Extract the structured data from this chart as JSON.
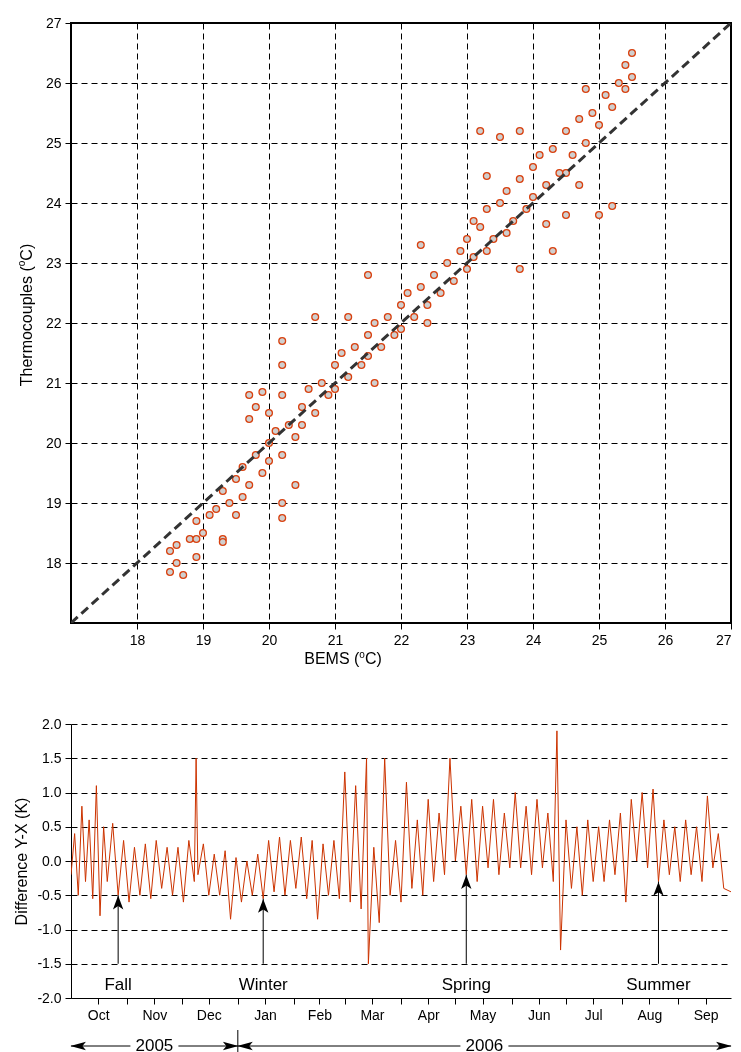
{
  "chart_data": [
    {
      "type": "scatter",
      "xlabel": "BEMS ($^{o}$C)",
      "ylabel": "Thermocouples ($^{o}$C)",
      "xlim": [
        17,
        27
      ],
      "ylim": [
        17,
        27
      ],
      "xticks": [
        18,
        19,
        20,
        21,
        22,
        23,
        24,
        25,
        26,
        27
      ],
      "yticks": [
        18,
        19,
        20,
        21,
        22,
        23,
        24,
        25,
        26,
        27
      ],
      "grid": true,
      "series": [
        {
          "type": "scatter",
          "color": "#d9410f",
          "marker": "circle",
          "x": [
            18.5,
            18.5,
            18.6,
            18.7,
            18.6,
            18.8,
            18.9,
            18.9,
            19.0,
            19.1,
            19.2,
            19.3,
            19.3,
            19.4,
            19.5,
            19.6,
            19.6,
            19.7,
            19.8,
            19.9,
            20.0,
            20.0,
            20.1,
            20.2,
            20.2,
            20.2,
            20.2,
            20.2,
            20.2,
            19.7,
            19.8,
            19.9,
            20.0,
            19.7,
            20.3,
            20.4,
            20.5,
            20.5,
            20.6,
            20.7,
            20.8,
            20.9,
            21.0,
            21.0,
            21.1,
            21.2,
            21.3,
            21.4,
            21.5,
            21.5,
            21.6,
            21.7,
            21.8,
            21.9,
            22.0,
            22.0,
            22.1,
            22.2,
            22.3,
            22.4,
            22.5,
            22.6,
            22.7,
            22.8,
            22.9,
            23.0,
            23.0,
            23.1,
            23.2,
            23.3,
            23.3,
            23.4,
            23.5,
            23.6,
            23.6,
            23.7,
            23.8,
            23.9,
            24.0,
            24.0,
            24.1,
            24.2,
            24.3,
            24.4,
            24.5,
            24.6,
            24.7,
            24.8,
            24.9,
            25.0,
            25.1,
            25.2,
            25.3,
            25.4,
            25.5,
            25.5,
            25.4,
            24.8,
            23.2,
            23.5,
            23.8,
            22.3,
            21.5,
            21.2,
            20.7,
            22.4,
            24.5,
            25.0,
            25.2,
            24.3,
            23.8,
            24.2,
            24.7,
            24.5,
            21.6,
            20.4,
            19.5,
            18.9,
            19.3,
            23.3,
            23.1
          ],
          "values": [
            17.85,
            18.2,
            18.0,
            17.8,
            18.3,
            18.4,
            18.1,
            18.7,
            18.5,
            18.8,
            18.9,
            18.4,
            19.2,
            19.0,
            19.4,
            19.1,
            19.6,
            19.3,
            19.8,
            19.5,
            20.0,
            19.7,
            20.2,
            19.8,
            18.75,
            19.0,
            21.7,
            21.3,
            20.8,
            20.8,
            20.6,
            20.85,
            20.5,
            20.4,
            20.3,
            20.1,
            20.6,
            20.3,
            20.9,
            20.5,
            21.0,
            20.8,
            21.3,
            20.9,
            21.5,
            21.1,
            21.6,
            21.3,
            21.8,
            21.45,
            22.0,
            21.6,
            22.1,
            21.8,
            22.3,
            21.9,
            22.5,
            22.1,
            22.6,
            22.3,
            22.8,
            22.5,
            23.0,
            22.7,
            23.2,
            22.9,
            23.4,
            23.1,
            23.6,
            23.2,
            23.9,
            23.4,
            24.0,
            23.5,
            24.2,
            23.7,
            24.4,
            23.9,
            24.6,
            24.1,
            24.8,
            24.3,
            24.9,
            24.5,
            25.2,
            24.8,
            25.4,
            25.0,
            25.5,
            25.3,
            25.8,
            25.6,
            26.0,
            25.9,
            26.5,
            26.1,
            26.3,
            25.9,
            25.2,
            25.1,
            25.2,
            23.3,
            22.8,
            22.1,
            22.1,
            22.0,
            23.8,
            23.8,
            23.95,
            23.2,
            22.9,
            23.65,
            24.3,
            24.5,
            21.0,
            19.3,
            18.8,
            18.4,
            18.35,
            24.45,
            23.7
          ]
        },
        {
          "type": "line",
          "color": "#333333",
          "line_style": "dashed",
          "marker": "none",
          "x": [
            17,
            27
          ],
          "values": [
            17,
            27
          ]
        }
      ]
    },
    {
      "type": "line",
      "ylabel": "Difference Y-X (K)",
      "xlim": [
        "2005-10-01",
        "2006-09-30"
      ],
      "xticks": [
        {
          "value": "2005-10-16",
          "label": "Oct"
        },
        {
          "value": "2005-11-01",
          "label": null
        },
        {
          "value": "2005-11-16",
          "label": "Nov"
        },
        {
          "value": "2005-12-01",
          "label": null
        },
        {
          "value": "2005-12-16",
          "label": "Dec"
        },
        {
          "value": "2006-01-01",
          "label": null
        },
        {
          "value": "2006-01-16",
          "label": "Jan"
        },
        {
          "value": "2006-02-01",
          "label": null
        },
        {
          "value": "2006-02-15",
          "label": "Feb"
        },
        {
          "value": "2006-03-01",
          "label": null
        },
        {
          "value": "2006-03-16",
          "label": "Mar"
        },
        {
          "value": "2006-04-01",
          "label": null
        },
        {
          "value": "2006-04-16",
          "label": "Apr"
        },
        {
          "value": "2006-05-01",
          "label": null
        },
        {
          "value": "2006-05-16",
          "label": "May"
        },
        {
          "value": "2006-06-01",
          "label": null
        },
        {
          "value": "2006-06-16",
          "label": "Jun"
        },
        {
          "value": "2006-07-01",
          "label": null
        },
        {
          "value": "2006-07-16",
          "label": "Jul"
        },
        {
          "value": "2006-08-01",
          "label": null
        },
        {
          "value": "2006-08-16",
          "label": "Aug"
        },
        {
          "value": "2006-09-01",
          "label": null
        },
        {
          "value": "2006-09-16",
          "label": "Sep"
        }
      ],
      "ylim": [
        -2,
        2
      ],
      "yticks": [
        {
          "value": -2,
          "label": "-2.0"
        },
        {
          "value": -1.5,
          "label": "-1.5"
        },
        {
          "value": -1,
          "label": "-1.0"
        },
        {
          "value": -0.5,
          "label": "-0.5"
        },
        {
          "value": 0,
          "label": "0.0"
        },
        {
          "value": 0.5,
          "label": "0.5"
        },
        {
          "value": 1,
          "label": "1.0"
        },
        {
          "value": 1.5,
          "label": "1.5"
        },
        {
          "value": 2,
          "label": "2.0"
        }
      ],
      "grid": "y",
      "x": [
        "2005-10-01",
        "2005-10-03",
        "2005-10-05",
        "2005-10-07",
        "2005-10-09",
        "2005-10-11",
        "2005-10-13",
        "2005-10-15",
        "2005-10-17",
        "2005-10-19",
        "2005-10-21",
        "2005-10-24",
        "2005-10-27",
        "2005-10-30",
        "2005-11-02",
        "2005-11-05",
        "2005-11-08",
        "2005-11-11",
        "2005-11-14",
        "2005-11-17",
        "2005-11-20",
        "2005-11-23",
        "2005-11-26",
        "2005-11-29",
        "2005-12-02",
        "2005-12-05",
        "2005-12-08",
        "2005-12-09",
        "2005-12-10",
        "2005-12-13",
        "2005-12-16",
        "2005-12-19",
        "2005-12-22",
        "2005-12-25",
        "2005-12-28",
        "2005-12-31",
        "2006-01-03",
        "2006-01-06",
        "2006-01-09",
        "2006-01-12",
        "2006-01-15",
        "2006-01-18",
        "2006-01-21",
        "2006-01-24",
        "2006-01-27",
        "2006-01-30",
        "2006-02-02",
        "2006-02-05",
        "2006-02-08",
        "2006-02-11",
        "2006-02-14",
        "2006-02-17",
        "2006-02-20",
        "2006-02-23",
        "2006-02-26",
        "2006-03-01",
        "2006-03-04",
        "2006-03-07",
        "2006-03-10",
        "2006-03-13",
        "2006-03-14",
        "2006-03-17",
        "2006-03-20",
        "2006-03-23",
        "2006-03-26",
        "2006-03-29",
        "2006-04-01",
        "2006-04-04",
        "2006-04-07",
        "2006-04-10",
        "2006-04-13",
        "2006-04-16",
        "2006-04-19",
        "2006-04-22",
        "2006-04-25",
        "2006-04-28",
        "2006-05-01",
        "2006-05-04",
        "2006-05-07",
        "2006-05-10",
        "2006-05-13",
        "2006-05-16",
        "2006-05-19",
        "2006-05-22",
        "2006-05-25",
        "2006-05-28",
        "2006-05-31",
        "2006-06-03",
        "2006-06-06",
        "2006-06-09",
        "2006-06-12",
        "2006-06-15",
        "2006-06-18",
        "2006-06-21",
        "2006-06-24",
        "2006-06-26",
        "2006-06-28",
        "2006-07-01",
        "2006-07-04",
        "2006-07-07",
        "2006-07-10",
        "2006-07-13",
        "2006-07-16",
        "2006-07-19",
        "2006-07-22",
        "2006-07-25",
        "2006-07-28",
        "2006-07-31",
        "2006-08-03",
        "2006-08-06",
        "2006-08-09",
        "2006-08-12",
        "2006-08-15",
        "2006-08-18",
        "2006-08-21",
        "2006-08-24",
        "2006-08-27",
        "2006-08-30",
        "2006-09-02",
        "2006-09-05",
        "2006-09-08",
        "2006-09-11",
        "2006-09-14",
        "2006-09-17",
        "2006-09-20",
        "2006-09-23",
        "2006-09-26",
        "2006-09-30"
      ],
      "series": [
        {
          "color": "#cc3300",
          "values": [
            -0.2,
            0.4,
            -0.5,
            0.8,
            -0.3,
            0.6,
            -0.55,
            1.1,
            -0.8,
            0.5,
            -0.3,
            0.55,
            -0.5,
            0.3,
            -0.6,
            0.2,
            -0.5,
            0.25,
            -0.55,
            0.3,
            -0.4,
            0.2,
            -0.5,
            0.2,
            -0.6,
            0.3,
            -0.3,
            1.5,
            -0.2,
            0.25,
            -0.5,
            0.1,
            -0.5,
            0.15,
            -0.85,
            0.05,
            -0.6,
            0.0,
            -0.5,
            0.1,
            -0.55,
            0.3,
            -0.45,
            0.35,
            -0.5,
            0.3,
            -0.4,
            0.35,
            -0.55,
            0.3,
            -0.85,
            0.25,
            -0.5,
            0.3,
            -0.55,
            1.3,
            -0.6,
            1.1,
            -0.7,
            1.5,
            -1.5,
            0.2,
            -0.9,
            1.5,
            -0.5,
            0.3,
            -0.6,
            1.15,
            -0.4,
            0.6,
            -0.5,
            0.9,
            -0.3,
            0.7,
            -0.2,
            1.5,
            0.0,
            0.8,
            -0.2,
            0.9,
            -0.3,
            0.8,
            -0.1,
            0.9,
            -0.2,
            0.7,
            -0.1,
            1.0,
            -0.1,
            0.8,
            -0.2,
            0.9,
            -0.1,
            0.7,
            -0.3,
            1.9,
            -1.3,
            0.6,
            -0.4,
            0.5,
            -0.5,
            0.6,
            -0.3,
            0.5,
            -0.3,
            0.6,
            -0.2,
            0.7,
            -0.6,
            0.9,
            0.0,
            1.0,
            -0.1,
            1.05,
            -0.3,
            0.6,
            -0.2,
            0.5,
            -0.3,
            0.6,
            -0.2,
            0.5,
            -0.3,
            0.95,
            -0.1,
            0.4,
            -0.4,
            -0.45
          ]
        }
      ],
      "annotations": [
        {
          "text": "Fall",
          "x": "2005-10-27",
          "y": -0.5
        },
        {
          "text": "Winter",
          "x": "2006-01-15",
          "y": -0.55
        },
        {
          "text": "Spring",
          "x": "2006-05-07",
          "y": -0.2
        },
        {
          "text": "Summer",
          "x": "2006-08-21",
          "y": -0.3
        },
        "2005",
        "2006"
      ]
    }
  ]
}
